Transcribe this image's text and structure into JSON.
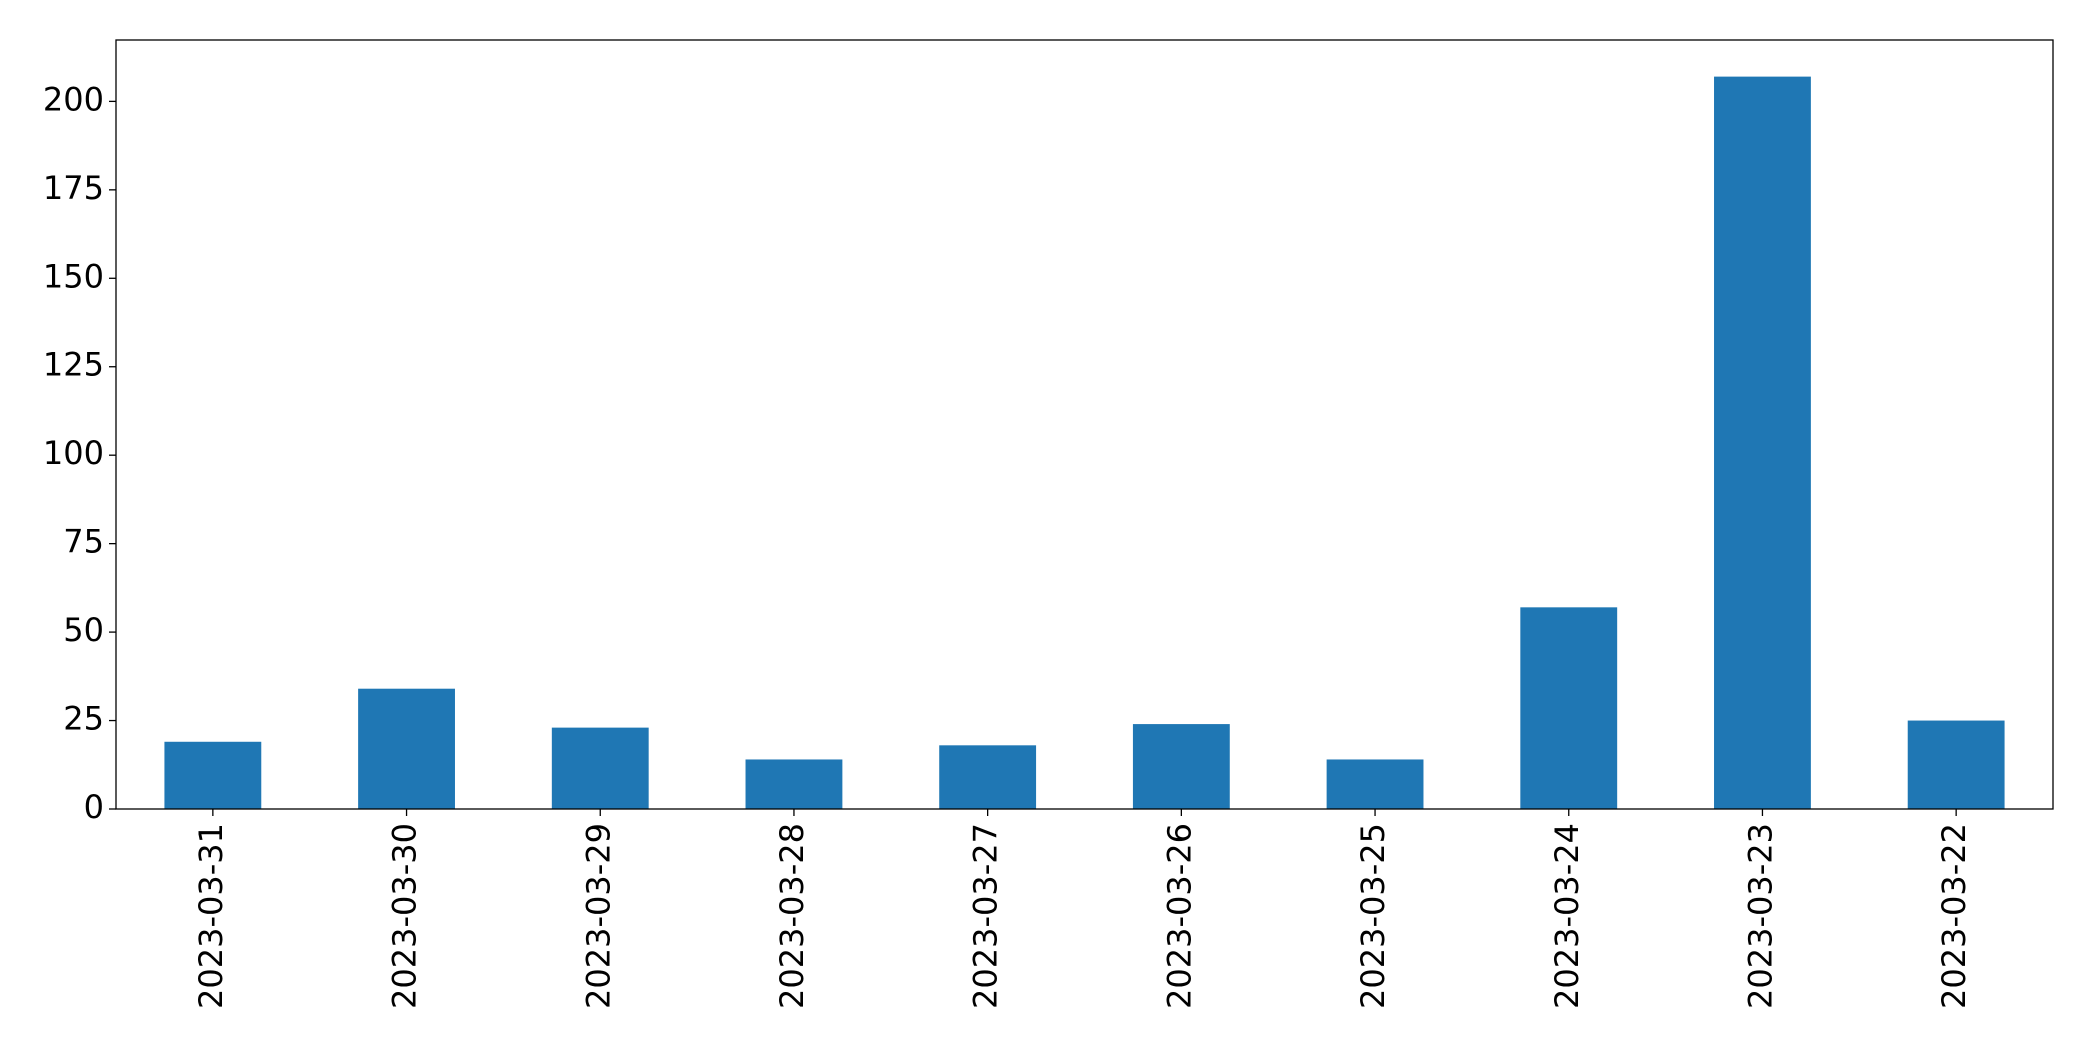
{
  "chart_data": {
    "type": "bar",
    "categories": [
      "2023-03-31",
      "2023-03-30",
      "2023-03-29",
      "2023-03-28",
      "2023-03-27",
      "2023-03-26",
      "2023-03-25",
      "2023-03-24",
      "2023-03-23",
      "2023-03-22"
    ],
    "values": [
      19,
      34,
      23,
      14,
      18,
      24,
      14,
      57,
      207,
      25
    ],
    "color": "#1f77b4",
    "ylim": [
      0,
      217.35
    ],
    "yticks": [
      0,
      25,
      50,
      75,
      100,
      125,
      150,
      175,
      200
    ],
    "grid": false
  }
}
